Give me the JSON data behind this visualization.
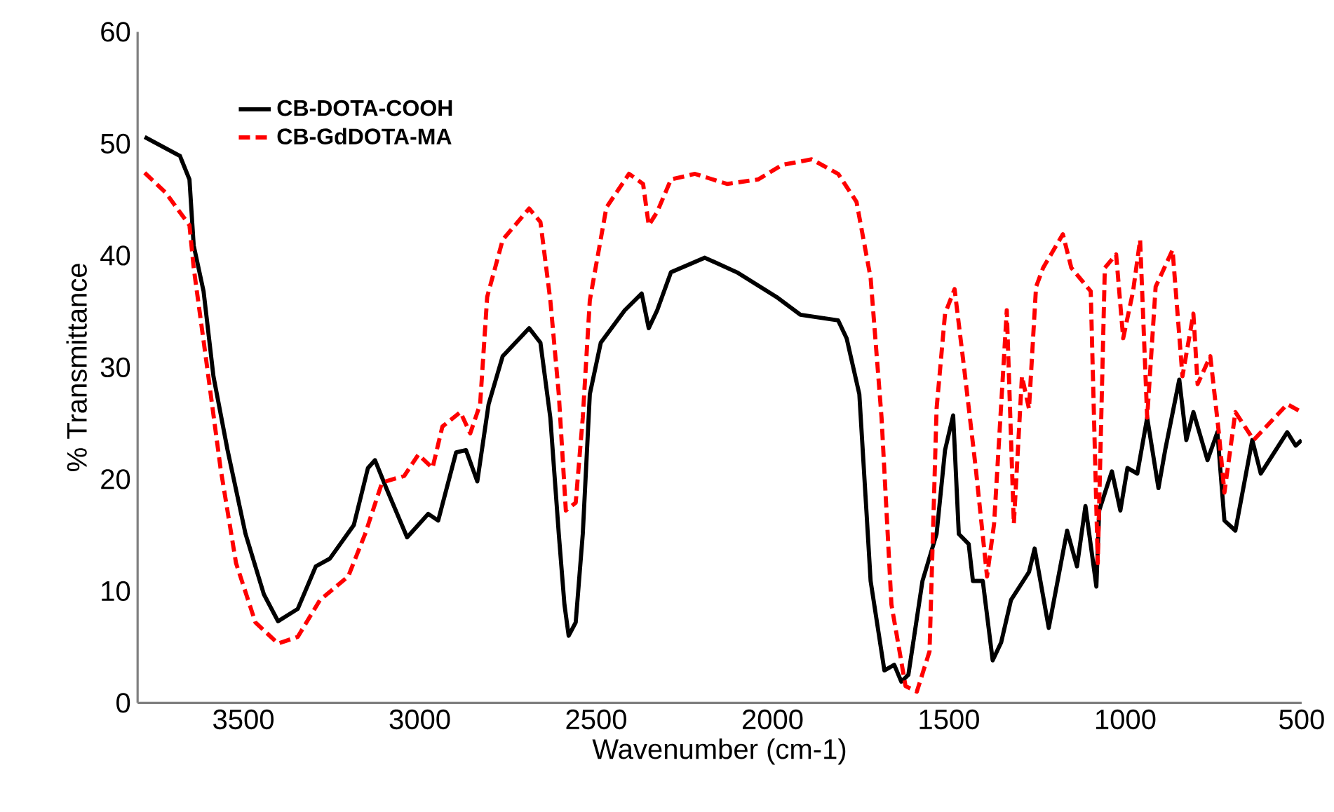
{
  "chart_data": {
    "type": "line",
    "xlabel": "Wavenumber (cm-1)",
    "ylabel": "% Transmittance",
    "xlim": [
      3800,
      500
    ],
    "xticks": [
      3500,
      3000,
      2500,
      2000,
      1500,
      1000,
      500
    ],
    "ylim": [
      0,
      60
    ],
    "yticks": [
      0,
      10,
      20,
      30,
      40,
      50,
      60
    ],
    "grid": false,
    "legend": "top left",
    "marker": "none",
    "series": [
      {
        "name": "CB-DOTA-COOH",
        "color": "#000000",
        "line_style": "solid",
        "x": [
          3780,
          3680,
          3653,
          3641,
          3613,
          3585,
          3545,
          3494,
          3442,
          3402,
          3346,
          3295,
          3255,
          3187,
          3147,
          3127,
          3095,
          3036,
          2976,
          2948,
          2897,
          2869,
          2837,
          2805,
          2765,
          2690,
          2658,
          2630,
          2606,
          2590,
          2578,
          2558,
          2538,
          2518,
          2487,
          2419,
          2371,
          2351,
          2327,
          2288,
          2192,
          2101,
          1989,
          1921,
          1814,
          1790,
          1754,
          1734,
          1722,
          1683,
          1655,
          1635,
          1615,
          1575,
          1535,
          1511,
          1488,
          1472,
          1444,
          1432,
          1404,
          1376,
          1352,
          1324,
          1273,
          1257,
          1217,
          1165,
          1137,
          1113,
          1082,
          1074,
          1038,
          1014,
          994,
          966,
          938,
          906,
          887,
          847,
          827,
          807,
          767,
          739,
          719,
          688,
          640,
          616,
          541,
          517,
          500
        ],
        "values": [
          50.6,
          48.9,
          46.8,
          40.9,
          36.8,
          29.2,
          22.6,
          15.1,
          9.7,
          7.3,
          8.4,
          12.2,
          12.9,
          15.9,
          21.0,
          21.7,
          19.2,
          14.8,
          16.9,
          16.3,
          22.4,
          22.6,
          19.8,
          26.7,
          31.0,
          33.5,
          32.2,
          25.5,
          15.1,
          8.8,
          6.0,
          7.2,
          15.1,
          27.6,
          32.2,
          35.1,
          36.6,
          33.5,
          35.1,
          38.5,
          39.8,
          38.5,
          36.3,
          34.7,
          34.2,
          32.6,
          27.6,
          17.2,
          10.9,
          2.9,
          3.4,
          1.9,
          2.5,
          10.9,
          15.1,
          22.6,
          25.7,
          15.1,
          14.2,
          10.9,
          10.9,
          3.8,
          5.4,
          9.2,
          11.7,
          13.8,
          6.7,
          15.4,
          12.2,
          17.6,
          10.4,
          17.2,
          20.7,
          17.2,
          21.0,
          20.5,
          25.5,
          19.2,
          22.6,
          28.9,
          23.5,
          26.0,
          21.7,
          24.2,
          16.3,
          15.4,
          23.5,
          20.5,
          24.2,
          23.0,
          23.5
        ]
      },
      {
        "name": "CB-GdDOTA-MA",
        "color": "#ff0000",
        "line_style": "dashed",
        "x": [
          3780,
          3720,
          3653,
          3641,
          3605,
          3565,
          3521,
          3466,
          3402,
          3346,
          3283,
          3203,
          3155,
          3107,
          3044,
          3004,
          2964,
          2936,
          2885,
          2857,
          2829,
          2809,
          2765,
          2690,
          2658,
          2630,
          2606,
          2586,
          2558,
          2538,
          2518,
          2471,
          2407,
          2367,
          2351,
          2327,
          2288,
          2220,
          2129,
          2041,
          1973,
          1889,
          1814,
          1762,
          1722,
          1691,
          1663,
          1623,
          1591,
          1555,
          1535,
          1511,
          1484,
          1456,
          1424,
          1392,
          1372,
          1336,
          1316,
          1293,
          1273,
          1253,
          1233,
          1177,
          1153,
          1098,
          1078,
          1058,
          1026,
          1006,
          978,
          958,
          938,
          914,
          866,
          838,
          807,
          795,
          759,
          735,
          719,
          688,
          636,
          541,
          500
        ],
        "values": [
          47.4,
          45.6,
          42.7,
          38.9,
          30.5,
          21.0,
          12.5,
          7.2,
          5.3,
          5.9,
          9.2,
          11.3,
          15.1,
          19.7,
          20.3,
          22.2,
          21.0,
          24.7,
          26.0,
          24.1,
          26.7,
          36.3,
          41.4,
          44.2,
          43.0,
          36.0,
          27.6,
          17.2,
          17.9,
          25.5,
          36.0,
          44.3,
          47.3,
          46.4,
          42.7,
          43.9,
          46.8,
          47.3,
          46.4,
          46.8,
          48.1,
          48.6,
          47.3,
          44.8,
          38.0,
          25.5,
          8.8,
          1.5,
          1.0,
          4.6,
          26.3,
          34.8,
          37.0,
          29.7,
          21.0,
          11.3,
          16.0,
          35.1,
          16.0,
          29.2,
          26.3,
          37.2,
          38.9,
          41.9,
          38.9,
          36.8,
          12.5,
          38.9,
          40.1,
          32.6,
          36.8,
          41.4,
          25.5,
          37.2,
          40.5,
          29.2,
          34.8,
          28.5,
          31.0,
          24.2,
          18.8,
          26.0,
          23.5,
          26.7,
          26.0
        ]
      }
    ]
  }
}
